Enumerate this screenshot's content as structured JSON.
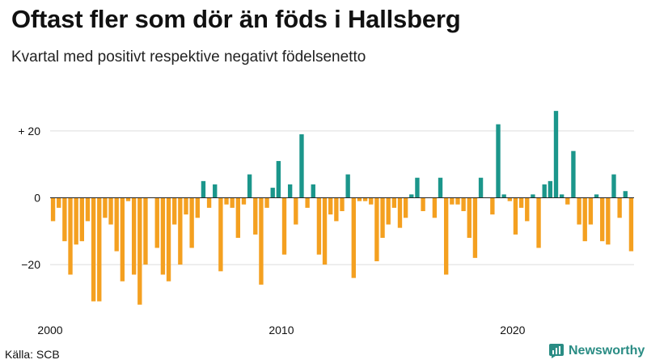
{
  "header": {
    "title": "Oftast fler som dör än föds i Hallsberg",
    "subtitle": "Kvartal med positivt respektive negativt födelsenetto"
  },
  "footer": {
    "source": "Källa: SCB",
    "brand": "Newsworthy"
  },
  "colors": {
    "positive": "#1b968b",
    "negative": "#f4a020",
    "brand": "#2a8c84"
  },
  "chart_data": {
    "type": "bar",
    "title": "Oftast fler som dör än föds i Hallsberg",
    "subtitle": "Kvartal med positivt respektive negativt födelsenetto",
    "xlabel": "",
    "ylabel": "",
    "x_start_year": 2000,
    "x_end_year": 2025,
    "xticks": [
      {
        "value": 2000,
        "label": "2000"
      },
      {
        "value": 2010,
        "label": "2010"
      },
      {
        "value": 2020,
        "label": "2020"
      }
    ],
    "yticks": [
      {
        "value": 20,
        "label": "+ 20"
      },
      {
        "value": 0,
        "label": "0"
      },
      {
        "value": -20,
        "label": "−20"
      }
    ],
    "ylim": [
      -34,
      30
    ],
    "values": [
      -7,
      -3,
      -13,
      -23,
      -14,
      -13,
      -7,
      -31,
      -31,
      -6,
      -8,
      -16,
      -25,
      -1,
      -23,
      -32,
      -20,
      0,
      -15,
      -23,
      -25,
      -8,
      -20,
      -5,
      -15,
      -6,
      5,
      -3,
      4,
      -22,
      -2,
      -3,
      -12,
      -2,
      7,
      -11,
      -26,
      -3,
      3,
      11,
      -17,
      4,
      -8,
      19,
      -3,
      4,
      -17,
      -20,
      -5,
      -7,
      -4,
      7,
      -24,
      -1,
      -1,
      -2,
      -19,
      -12,
      -8,
      -3,
      -9,
      -6,
      1,
      6,
      -4,
      0,
      -6,
      6,
      -23,
      -2,
      -2,
      -4,
      -12,
      -18,
      6,
      0,
      -5,
      22,
      1,
      -1,
      -11,
      -3,
      -7,
      1,
      -15,
      4,
      5,
      26,
      1,
      -2,
      14,
      -8,
      -13,
      -8,
      1,
      -13,
      -14,
      7,
      -6,
      2,
      -16
    ]
  }
}
